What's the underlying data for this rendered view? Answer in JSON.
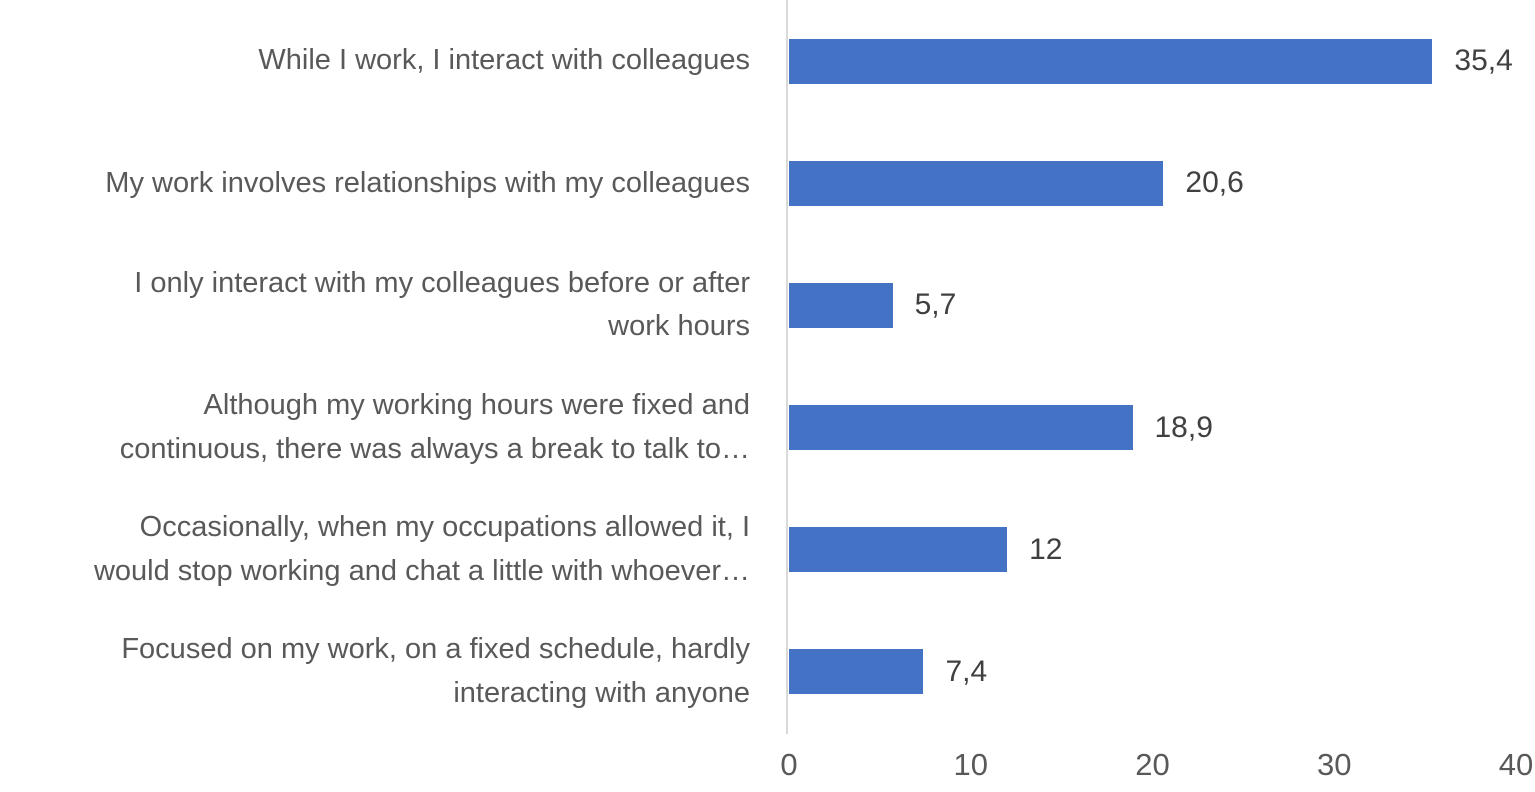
{
  "chart_data": {
    "type": "bar",
    "orientation": "horizontal",
    "title": "",
    "xlabel": "",
    "ylabel": "",
    "categories": [
      "While I work, I interact with colleagues",
      "My work involves relationships with my colleagues",
      "I only interact with my colleagues before or after\nwork hours",
      "Although my working hours were fixed and\ncontinuous, there was always a break to talk to…",
      "Occasionally, when my occupations allowed it, I\nwould stop working and chat a little with whoever…",
      "Focused on my work, on a fixed schedule, hardly\ninteracting with anyone"
    ],
    "values": [
      35.4,
      20.6,
      5.7,
      18.9,
      12,
      7.4
    ],
    "value_labels": [
      "35,4",
      "20,6",
      "5,7",
      "18,9",
      "12",
      "7,4"
    ],
    "xlim": [
      0,
      40
    ],
    "xticks": [
      0,
      10,
      20,
      30,
      40
    ],
    "xtick_labels": [
      "0",
      "10",
      "20",
      "30",
      "40"
    ],
    "grid": false,
    "legend": false,
    "colors": {
      "bar": "#4472C4",
      "axis_line": "#D9D9D9",
      "category_label": "#595959",
      "value_label": "#404040",
      "tick_label": "#595959",
      "background": "#FFFFFF"
    }
  }
}
